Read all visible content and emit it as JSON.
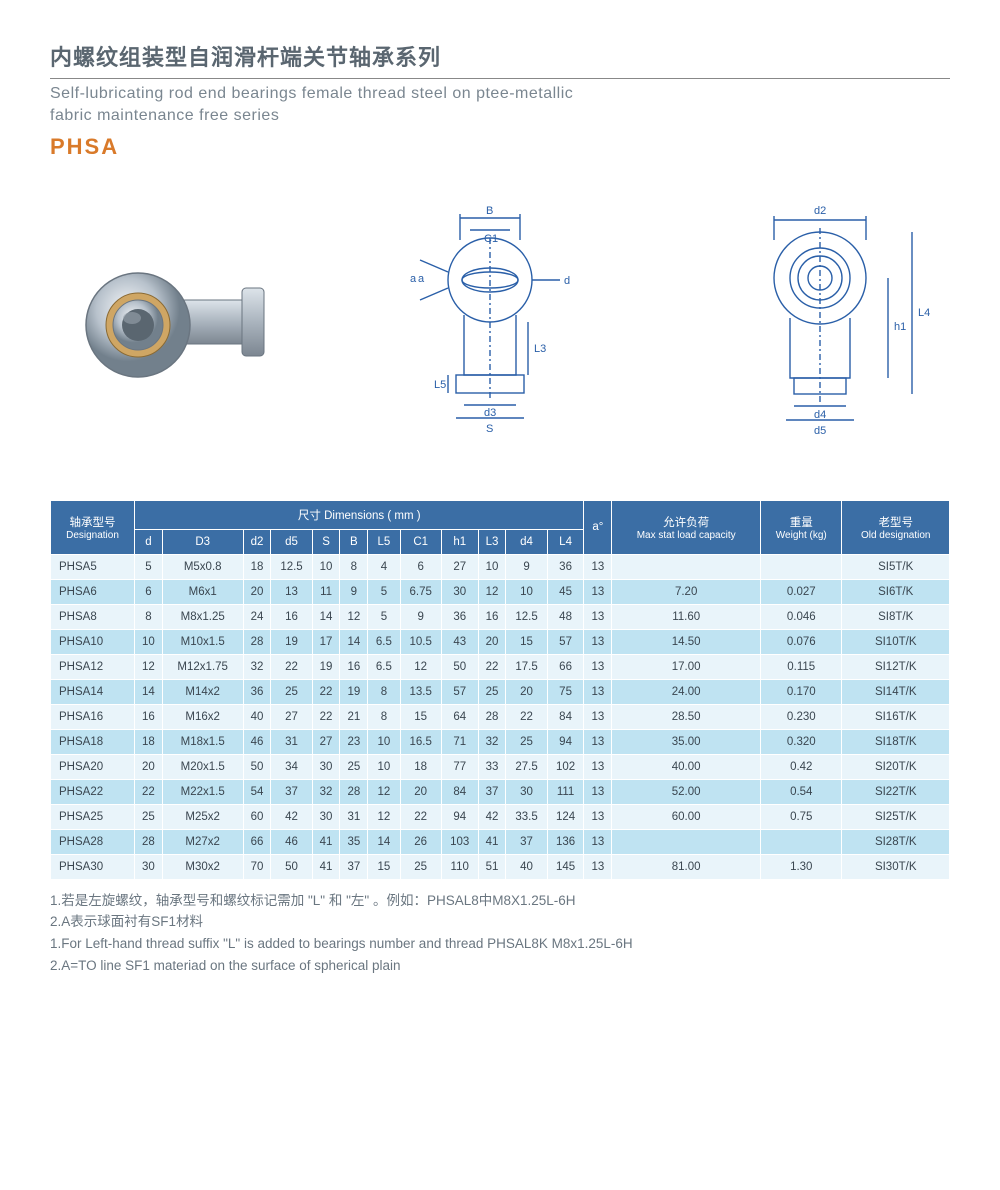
{
  "header": {
    "title_cn": "内螺纹组装型自润滑杆端关节轴承系列",
    "title_en_line1": "Self-lubricating rod end bearings female thread steel on ptee-metallic",
    "title_en_line2": "fabric maintenance free series",
    "series": "PHSA"
  },
  "diagram_labels": {
    "B": "B",
    "C1": "C1",
    "d": "d",
    "a": "a",
    "L5": "L5",
    "d3": "d3",
    "S": "S",
    "L3": "L3",
    "d2": "d2",
    "h1": "h1",
    "L4": "L4",
    "d4": "d4",
    "d5": "d5"
  },
  "table": {
    "header_designation_cn": "轴承型号",
    "header_designation_en": "Designation",
    "header_dimensions_cn": "尺寸  Dimensions ( mm )",
    "header_a": "a°",
    "header_maxstat_cn": "允许负荷",
    "header_maxstat_en": "Max stat load capacity",
    "header_weight_cn": "重量",
    "header_weight_en": "Weight (kg)",
    "header_old_cn": "老型号",
    "header_old_en": "Old designation",
    "dim_cols": [
      "d",
      "D3",
      "d2",
      "d5",
      "S",
      "B",
      "L5",
      "C1",
      "h1",
      "L3",
      "d4",
      "L4"
    ],
    "rows": [
      {
        "des": "PHSA5",
        "d": "5",
        "D3": "M5x0.8",
        "d2": "18",
        "d5": "12.5",
        "S": "10",
        "B": "8",
        "L5": "4",
        "C1": "6",
        "h1": "27",
        "L3": "10",
        "d4": "9",
        "L4": "36",
        "a": "13",
        "max": "",
        "wt": "",
        "old": "SI5T/K"
      },
      {
        "des": "PHSA6",
        "d": "6",
        "D3": "M6x1",
        "d2": "20",
        "d5": "13",
        "S": "11",
        "B": "9",
        "L5": "5",
        "C1": "6.75",
        "h1": "30",
        "L3": "12",
        "d4": "10",
        "L4": "45",
        "a": "13",
        "max": "7.20",
        "wt": "0.027",
        "old": "SI6T/K"
      },
      {
        "des": "PHSA8",
        "d": "8",
        "D3": "M8x1.25",
        "d2": "24",
        "d5": "16",
        "S": "14",
        "B": "12",
        "L5": "5",
        "C1": "9",
        "h1": "36",
        "L3": "16",
        "d4": "12.5",
        "L4": "48",
        "a": "13",
        "max": "11.60",
        "wt": "0.046",
        "old": "SI8T/K"
      },
      {
        "des": "PHSA10",
        "d": "10",
        "D3": "M10x1.5",
        "d2": "28",
        "d5": "19",
        "S": "17",
        "B": "14",
        "L5": "6.5",
        "C1": "10.5",
        "h1": "43",
        "L3": "20",
        "d4": "15",
        "L4": "57",
        "a": "13",
        "max": "14.50",
        "wt": "0.076",
        "old": "SI10T/K"
      },
      {
        "des": "PHSA12",
        "d": "12",
        "D3": "M12x1.75",
        "d2": "32",
        "d5": "22",
        "S": "19",
        "B": "16",
        "L5": "6.5",
        "C1": "12",
        "h1": "50",
        "L3": "22",
        "d4": "17.5",
        "L4": "66",
        "a": "13",
        "max": "17.00",
        "wt": "0.115",
        "old": "SI12T/K"
      },
      {
        "des": "PHSA14",
        "d": "14",
        "D3": "M14x2",
        "d2": "36",
        "d5": "25",
        "S": "22",
        "B": "19",
        "L5": "8",
        "C1": "13.5",
        "h1": "57",
        "L3": "25",
        "d4": "20",
        "L4": "75",
        "a": "13",
        "max": "24.00",
        "wt": "0.170",
        "old": "SI14T/K"
      },
      {
        "des": "PHSA16",
        "d": "16",
        "D3": "M16x2",
        "d2": "40",
        "d5": "27",
        "S": "22",
        "B": "21",
        "L5": "8",
        "C1": "15",
        "h1": "64",
        "L3": "28",
        "d4": "22",
        "L4": "84",
        "a": "13",
        "max": "28.50",
        "wt": "0.230",
        "old": "SI16T/K"
      },
      {
        "des": "PHSA18",
        "d": "18",
        "D3": "M18x1.5",
        "d2": "46",
        "d5": "31",
        "S": "27",
        "B": "23",
        "L5": "10",
        "C1": "16.5",
        "h1": "71",
        "L3": "32",
        "d4": "25",
        "L4": "94",
        "a": "13",
        "max": "35.00",
        "wt": "0.320",
        "old": "SI18T/K"
      },
      {
        "des": "PHSA20",
        "d": "20",
        "D3": "M20x1.5",
        "d2": "50",
        "d5": "34",
        "S": "30",
        "B": "25",
        "L5": "10",
        "C1": "18",
        "h1": "77",
        "L3": "33",
        "d4": "27.5",
        "L4": "102",
        "a": "13",
        "max": "40.00",
        "wt": "0.42",
        "old": "SI20T/K"
      },
      {
        "des": "PHSA22",
        "d": "22",
        "D3": "M22x1.5",
        "d2": "54",
        "d5": "37",
        "S": "32",
        "B": "28",
        "L5": "12",
        "C1": "20",
        "h1": "84",
        "L3": "37",
        "d4": "30",
        "L4": "111",
        "a": "13",
        "max": "52.00",
        "wt": "0.54",
        "old": "SI22T/K"
      },
      {
        "des": "PHSA25",
        "d": "25",
        "D3": "M25x2",
        "d2": "60",
        "d5": "42",
        "S": "30",
        "B": "31",
        "L5": "12",
        "C1": "22",
        "h1": "94",
        "L3": "42",
        "d4": "33.5",
        "L4": "124",
        "a": "13",
        "max": "60.00",
        "wt": "0.75",
        "old": "SI25T/K"
      },
      {
        "des": "PHSA28",
        "d": "28",
        "D3": "M27x2",
        "d2": "66",
        "d5": "46",
        "S": "41",
        "B": "35",
        "L5": "14",
        "C1": "26",
        "h1": "103",
        "L3": "41",
        "d4": "37",
        "L4": "136",
        "a": "13",
        "max": "",
        "wt": "",
        "old": "SI28T/K"
      },
      {
        "des": "PHSA30",
        "d": "30",
        "D3": "M30x2",
        "d2": "70",
        "d5": "50",
        "S": "41",
        "B": "37",
        "L5": "15",
        "C1": "25",
        "h1": "110",
        "L3": "51",
        "d4": "40",
        "L4": "145",
        "a": "13",
        "max": "81.00",
        "wt": "1.30",
        "old": "SI30T/K"
      }
    ]
  },
  "notes": {
    "n1": "1.若是左旋螺纹，轴承型号和螺纹标记需加 \"L\" 和 \"左\" 。例如：PHSAL8中M8X1.25L-6H",
    "n2": "2.A表示球面衬有SF1材料",
    "n3": "1.For Left-hand thread suffix \"L\" is added to bearings number and thread PHSAL8K M8x1.25L-6H",
    "n4": "2.A=TO line SF1 materiad on the surface of spherical plain"
  },
  "style": {
    "header_bg": "#3b6ea5",
    "row_even_bg": "#bfe3f2",
    "row_odd_bg": "#e9f4fa",
    "accent": "#d97a2a",
    "text_muted": "#6a7680",
    "diagram_stroke": "#2a5fa8"
  }
}
